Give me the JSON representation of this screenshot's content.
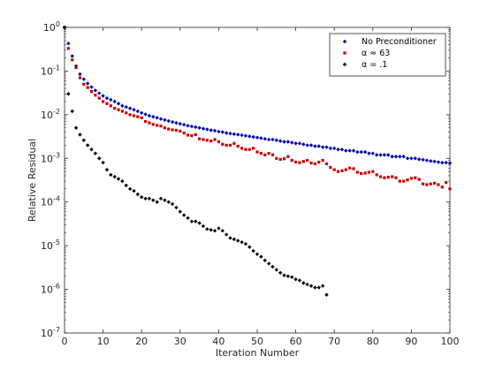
{
  "chart_data": {
    "type": "scatter",
    "xlabel": "Iteration Number",
    "ylabel": "Relative Residual",
    "xlim": [
      0,
      100
    ],
    "ylim": [
      1e-07,
      1
    ],
    "yscale": "log",
    "grid": false,
    "legend_position": "top-right",
    "x_ticks": [
      "0",
      "10",
      "20",
      "30",
      "40",
      "50",
      "60",
      "70",
      "80",
      "90",
      "100"
    ],
    "y_ticks": [
      {
        "base": "10",
        "exp": "0",
        "value": 1
      },
      {
        "base": "10",
        "exp": "-1",
        "value": 0.1
      },
      {
        "base": "10",
        "exp": "-2",
        "value": 0.01
      },
      {
        "base": "10",
        "exp": "-3",
        "value": 0.001
      },
      {
        "base": "10",
        "exp": "-4",
        "value": 0.0001
      },
      {
        "base": "10",
        "exp": "-5",
        "value": 1e-05
      },
      {
        "base": "10",
        "exp": "-6",
        "value": 1e-06
      },
      {
        "base": "10",
        "exp": "-7",
        "value": 1e-07
      }
    ],
    "series": [
      {
        "name": "No Preconditioner",
        "color": "#0000b4",
        "marker": "diamond",
        "points": [
          [
            0,
            1
          ],
          [
            1,
            0.43
          ],
          [
            2,
            0.22
          ],
          [
            3,
            0.13
          ],
          [
            4,
            0.085
          ],
          [
            5,
            0.065
          ],
          [
            6,
            0.052
          ],
          [
            7,
            0.043
          ],
          [
            8,
            0.036
          ],
          [
            9,
            0.031
          ],
          [
            10,
            0.027
          ],
          [
            11,
            0.024
          ],
          [
            12,
            0.022
          ],
          [
            13,
            0.02
          ],
          [
            14,
            0.018
          ],
          [
            15,
            0.016
          ],
          [
            16,
            0.015
          ],
          [
            17,
            0.014
          ],
          [
            18,
            0.013
          ],
          [
            19,
            0.012
          ],
          [
            20,
            0.011
          ],
          [
            21,
            0.0102
          ],
          [
            22,
            0.0095
          ],
          [
            23,
            0.009
          ],
          [
            24,
            0.0085
          ],
          [
            25,
            0.008
          ],
          [
            26,
            0.0076
          ],
          [
            27,
            0.0072
          ],
          [
            28,
            0.0068
          ],
          [
            29,
            0.0065
          ],
          [
            30,
            0.0062
          ],
          [
            31,
            0.0059
          ],
          [
            32,
            0.0056
          ],
          [
            33,
            0.0054
          ],
          [
            34,
            0.0052
          ],
          [
            35,
            0.005
          ],
          [
            36,
            0.0048
          ],
          [
            37,
            0.0046
          ],
          [
            38,
            0.0044
          ],
          [
            39,
            0.0043
          ],
          [
            40,
            0.0041
          ],
          [
            41,
            0.004
          ],
          [
            42,
            0.0038
          ],
          [
            43,
            0.0037
          ],
          [
            44,
            0.0036
          ],
          [
            45,
            0.0035
          ],
          [
            46,
            0.0034
          ],
          [
            47,
            0.0033
          ],
          [
            48,
            0.0032
          ],
          [
            49,
            0.0031
          ],
          [
            50,
            0.003
          ],
          [
            51,
            0.0029
          ],
          [
            52,
            0.0028
          ],
          [
            53,
            0.0027
          ],
          [
            54,
            0.0027
          ],
          [
            55,
            0.0026
          ],
          [
            56,
            0.0025
          ],
          [
            57,
            0.0024
          ],
          [
            58,
            0.0024
          ],
          [
            59,
            0.0023
          ],
          [
            60,
            0.0022
          ],
          [
            61,
            0.0022
          ],
          [
            62,
            0.0021
          ],
          [
            63,
            0.002
          ],
          [
            64,
            0.002
          ],
          [
            65,
            0.0019
          ],
          [
            66,
            0.0019
          ],
          [
            67,
            0.0018
          ],
          [
            68,
            0.0018
          ],
          [
            69,
            0.0017
          ],
          [
            70,
            0.0017
          ],
          [
            71,
            0.0016
          ],
          [
            72,
            0.0016
          ],
          [
            73,
            0.0015
          ],
          [
            74,
            0.0015
          ],
          [
            75,
            0.0015
          ],
          [
            76,
            0.0014
          ],
          [
            77,
            0.0014
          ],
          [
            78,
            0.0014
          ],
          [
            79,
            0.0013
          ],
          [
            80,
            0.0013
          ],
          [
            81,
            0.0012
          ],
          [
            82,
            0.0012
          ],
          [
            83,
            0.0012
          ],
          [
            84,
            0.0012
          ],
          [
            85,
            0.0011
          ],
          [
            86,
            0.0011
          ],
          [
            87,
            0.0011
          ],
          [
            88,
            0.0011
          ],
          [
            89,
            0.001
          ],
          [
            90,
            0.001
          ],
          [
            91,
            0.001
          ],
          [
            92,
            0.00095
          ],
          [
            93,
            0.00093
          ],
          [
            94,
            0.0009
          ],
          [
            95,
            0.00087
          ],
          [
            96,
            0.00085
          ],
          [
            97,
            0.00082
          ],
          [
            98,
            0.0008
          ],
          [
            99,
            0.0008
          ],
          [
            100,
            0.00078
          ]
        ]
      },
      {
        "name": "α ≈ 63",
        "color": "#c80000",
        "marker": "square",
        "points": [
          [
            0,
            1
          ],
          [
            1,
            0.33
          ],
          [
            2,
            0.18
          ],
          [
            3,
            0.12
          ],
          [
            4,
            0.07
          ],
          [
            5,
            0.05
          ],
          [
            6,
            0.042
          ],
          [
            7,
            0.034
          ],
          [
            8,
            0.028
          ],
          [
            9,
            0.024
          ],
          [
            10,
            0.02
          ],
          [
            11,
            0.018
          ],
          [
            12,
            0.016
          ],
          [
            13,
            0.014
          ],
          [
            14,
            0.013
          ],
          [
            15,
            0.012
          ],
          [
            16,
            0.011
          ],
          [
            17,
            0.01
          ],
          [
            18,
            0.0095
          ],
          [
            19,
            0.009
          ],
          [
            20,
            0.0085
          ],
          [
            21,
            0.007
          ],
          [
            22,
            0.0065
          ],
          [
            23,
            0.006
          ],
          [
            24,
            0.0057
          ],
          [
            25,
            0.0055
          ],
          [
            26,
            0.005
          ],
          [
            27,
            0.0047
          ],
          [
            28,
            0.0045
          ],
          [
            29,
            0.0044
          ],
          [
            30,
            0.0042
          ],
          [
            31,
            0.0038
          ],
          [
            32,
            0.0034
          ],
          [
            33,
            0.0033
          ],
          [
            34,
            0.0035
          ],
          [
            35,
            0.0028
          ],
          [
            36,
            0.0027
          ],
          [
            37,
            0.0026
          ],
          [
            38,
            0.0025
          ],
          [
            39,
            0.0027
          ],
          [
            40,
            0.0024
          ],
          [
            41,
            0.0021
          ],
          [
            42,
            0.002
          ],
          [
            43,
            0.002
          ],
          [
            44,
            0.0022
          ],
          [
            45,
            0.0019
          ],
          [
            46,
            0.0017
          ],
          [
            47,
            0.0016
          ],
          [
            48,
            0.0016
          ],
          [
            49,
            0.0017
          ],
          [
            50,
            0.0014
          ],
          [
            51,
            0.0013
          ],
          [
            52,
            0.0012
          ],
          [
            53,
            0.0013
          ],
          [
            54,
            0.0012
          ],
          [
            55,
            0.001
          ],
          [
            56,
            0.00095
          ],
          [
            57,
            0.00098
          ],
          [
            58,
            0.0011
          ],
          [
            59,
            0.0009
          ],
          [
            60,
            0.00082
          ],
          [
            61,
            0.0008
          ],
          [
            62,
            0.00085
          ],
          [
            63,
            0.0009
          ],
          [
            64,
            0.00078
          ],
          [
            65,
            0.00075
          ],
          [
            66,
            0.00082
          ],
          [
            67,
            0.0009
          ],
          [
            68,
            0.00075
          ],
          [
            69,
            0.00062
          ],
          [
            70,
            0.00055
          ],
          [
            71,
            0.0005
          ],
          [
            72,
            0.00052
          ],
          [
            73,
            0.00055
          ],
          [
            74,
            0.0006
          ],
          [
            75,
            0.00058
          ],
          [
            76,
            0.00048
          ],
          [
            77,
            0.00045
          ],
          [
            78,
            0.00046
          ],
          [
            79,
            0.00048
          ],
          [
            80,
            0.0005
          ],
          [
            81,
            0.00042
          ],
          [
            82,
            0.00038
          ],
          [
            83,
            0.00036
          ],
          [
            84,
            0.00037
          ],
          [
            85,
            0.00038
          ],
          [
            86,
            0.00036
          ],
          [
            87,
            0.0003
          ],
          [
            88,
            0.0003
          ],
          [
            89,
            0.00032
          ],
          [
            90,
            0.00035
          ],
          [
            91,
            0.00036
          ],
          [
            92,
            0.00033
          ],
          [
            93,
            0.00026
          ],
          [
            94,
            0.00025
          ],
          [
            95,
            0.00026
          ],
          [
            96,
            0.00027
          ],
          [
            97,
            0.00025
          ],
          [
            98,
            0.00022
          ],
          [
            99,
            0.00028
          ],
          [
            100,
            0.0002
          ]
        ]
      },
      {
        "name": "α = .1",
        "color": "#000000",
        "marker": "diamond",
        "points": [
          [
            0,
            1
          ],
          [
            1,
            0.03
          ],
          [
            2,
            0.012
          ],
          [
            3,
            0.005
          ],
          [
            4,
            0.0035
          ],
          [
            5,
            0.0026
          ],
          [
            6,
            0.002
          ],
          [
            7,
            0.0016
          ],
          [
            8,
            0.0013
          ],
          [
            9,
            0.001
          ],
          [
            10,
            0.0008
          ],
          [
            11,
            0.00055
          ],
          [
            12,
            0.00042
          ],
          [
            13,
            0.00038
          ],
          [
            14,
            0.00034
          ],
          [
            15,
            0.0003
          ],
          [
            16,
            0.00024
          ],
          [
            17,
            0.0002
          ],
          [
            18,
            0.00018
          ],
          [
            19,
            0.00015
          ],
          [
            20,
            0.00013
          ],
          [
            21,
            0.00012
          ],
          [
            22,
            0.00012
          ],
          [
            23,
            0.00011
          ],
          [
            24,
            0.0001
          ],
          [
            25,
            0.00012
          ],
          [
            26,
            0.00011
          ],
          [
            27,
            0.0001
          ],
          [
            28,
            9e-05
          ],
          [
            29,
            7.5e-05
          ],
          [
            30,
            6e-05
          ],
          [
            31,
            5e-05
          ],
          [
            32,
            4.3e-05
          ],
          [
            33,
            3.6e-05
          ],
          [
            34,
            3.6e-05
          ],
          [
            35,
            3.3e-05
          ],
          [
            36,
            2.8e-05
          ],
          [
            37,
            2.4e-05
          ],
          [
            38,
            2.3e-05
          ],
          [
            39,
            2.2e-05
          ],
          [
            40,
            2.5e-05
          ],
          [
            41,
            2.2e-05
          ],
          [
            42,
            1.8e-05
          ],
          [
            43,
            1.5e-05
          ],
          [
            44,
            1.4e-05
          ],
          [
            45,
            1.3e-05
          ],
          [
            46,
            1.2e-05
          ],
          [
            47,
            1.1e-05
          ],
          [
            48,
            9.3e-06
          ],
          [
            49,
            7.6e-06
          ],
          [
            50,
            6.4e-06
          ],
          [
            51,
            5.6e-06
          ],
          [
            52,
            4.6e-06
          ],
          [
            53,
            3.9e-06
          ],
          [
            54,
            3.3e-06
          ],
          [
            55,
            2.8e-06
          ],
          [
            56,
            2.4e-06
          ],
          [
            57,
            2.1e-06
          ],
          [
            58,
            2e-06
          ],
          [
            59,
            1.9e-06
          ],
          [
            60,
            1.7e-06
          ],
          [
            61,
            1.6e-06
          ],
          [
            62,
            1.4e-06
          ],
          [
            63,
            1.3e-06
          ],
          [
            64,
            1.2e-06
          ],
          [
            65,
            1.1e-06
          ],
          [
            66,
            1.1e-06
          ],
          [
            67,
            1.2e-06
          ],
          [
            68,
            7.5e-07
          ]
        ]
      }
    ]
  }
}
